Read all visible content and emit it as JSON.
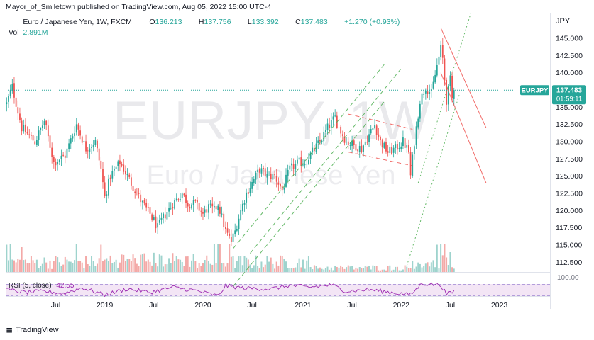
{
  "caption": {
    "author": "Mayor_of_Smiletown",
    "text": "published on TradingView.com, Aug 05, 2022 15:00 UTC-4"
  },
  "legend": {
    "title": "Euro / Japanese Yen, 1W, FXCM",
    "open_label": "O",
    "open": "136.213",
    "high_label": "H",
    "high": "137.756",
    "low_label": "L",
    "low": "133.392",
    "close_label": "C",
    "close": "137.483",
    "change": "+1.270 (+0.93%)",
    "vol_label": "Vol",
    "vol": "2.891M"
  },
  "watermark": {
    "symbol": "EURJPY, 1W",
    "name": "Euro / Japanese Yen"
  },
  "price_tag": {
    "symbol": "EURJPY",
    "price": "137.483",
    "countdown": "01:59:11"
  },
  "rsi": {
    "label": "RSI (5, close)",
    "value": "42.55",
    "level_label": "100.00"
  },
  "brand": {
    "name": "TradingView"
  },
  "colors": {
    "up": "#26a69a",
    "down": "#ef5350",
    "vol_up": "#9ed3cd",
    "vol_down": "#f3a9a7",
    "channel_green": "#4caf50",
    "channel_red": "#ef5350",
    "rsi_line": "#9c27b0",
    "rsi_fill": "#f3e5f5",
    "price_line": "#26a69a"
  },
  "chart_data": {
    "type": "candlestick",
    "currency_label": "JPY",
    "ylim": [
      111.5,
      148.5
    ],
    "y_ticks": [
      "145.000",
      "142.500",
      "140.000",
      "137.500",
      "135.000",
      "132.500",
      "130.000",
      "127.500",
      "125.000",
      "122.500",
      "120.000",
      "117.500",
      "115.000",
      "112.500"
    ],
    "x_ticks": [
      {
        "label": "Jul",
        "t": 26
      },
      {
        "label": "2019",
        "t": 52
      },
      {
        "label": "Jul",
        "t": 78
      },
      {
        "label": "2020",
        "t": 104
      },
      {
        "label": "Jul",
        "t": 130
      },
      {
        "label": "2021",
        "t": 157
      },
      {
        "label": "Jul",
        "t": 183
      },
      {
        "label": "2022",
        "t": 209
      },
      {
        "label": "Jul",
        "t": 235
      },
      {
        "label": "2023",
        "t": 261
      }
    ],
    "last_price": 137.483,
    "price_anchors": [
      [
        0,
        135.5
      ],
      [
        3,
        138.0
      ],
      [
        8,
        132.0
      ],
      [
        15,
        130.0
      ],
      [
        20,
        133.0
      ],
      [
        25,
        127.0
      ],
      [
        31,
        128.0
      ],
      [
        37,
        132.5
      ],
      [
        42,
        129.0
      ],
      [
        47,
        130.0
      ],
      [
        50,
        126.0
      ],
      [
        52,
        122.0
      ],
      [
        55,
        125.0
      ],
      [
        60,
        127.0
      ],
      [
        64,
        125.0
      ],
      [
        68,
        123.0
      ],
      [
        72,
        121.0
      ],
      [
        76,
        119.5
      ],
      [
        80,
        117.5
      ],
      [
        83,
        119.0
      ],
      [
        88,
        121.0
      ],
      [
        93,
        122.5
      ],
      [
        96,
        121.0
      ],
      [
        100,
        121.0
      ],
      [
        104,
        119.5
      ],
      [
        107,
        120.5
      ],
      [
        110,
        120.0
      ],
      [
        112,
        121.0
      ],
      [
        114,
        119.0
      ],
      [
        116,
        117.0
      ],
      [
        119,
        115.5
      ],
      [
        121,
        117.0
      ],
      [
        124,
        120.0
      ],
      [
        127,
        122.5
      ],
      [
        130,
        124.0
      ],
      [
        134,
        126.0
      ],
      [
        138,
        125.0
      ],
      [
        142,
        125.0
      ],
      [
        146,
        123.0
      ],
      [
        150,
        126.0
      ],
      [
        155,
        127.0
      ],
      [
        158,
        127.0
      ],
      [
        162,
        128.5
      ],
      [
        166,
        130.0
      ],
      [
        170,
        132.0
      ],
      [
        174,
        133.5
      ],
      [
        176,
        132.0
      ],
      [
        180,
        130.0
      ],
      [
        184,
        129.5
      ],
      [
        188,
        129.0
      ],
      [
        192,
        131.0
      ],
      [
        195,
        132.5
      ],
      [
        198,
        130.0
      ],
      [
        202,
        128.5
      ],
      [
        206,
        129.0
      ],
      [
        210,
        130.0
      ],
      [
        213,
        128.5
      ],
      [
        214,
        125.0
      ],
      [
        216,
        130.0
      ],
      [
        219,
        136.0
      ],
      [
        222,
        138.0
      ],
      [
        225,
        137.0
      ],
      [
        228,
        141.0
      ],
      [
        230,
        143.5
      ],
      [
        231,
        142.0
      ],
      [
        233,
        136.0
      ],
      [
        235,
        139.0
      ],
      [
        236,
        136.2
      ],
      [
        237,
        137.48
      ]
    ],
    "volume_spikes": [
      [
        0,
        5.5
      ],
      [
        2,
        6
      ],
      [
        8,
        5
      ],
      [
        37,
        6
      ],
      [
        50,
        5.5
      ],
      [
        110,
        7
      ],
      [
        112,
        9
      ],
      [
        113,
        6
      ],
      [
        118,
        6.5
      ],
      [
        228,
        5.5
      ],
      [
        230,
        8
      ],
      [
        232,
        6
      ],
      [
        235,
        4
      ]
    ],
    "rsi_anchors": [
      [
        0,
        52
      ],
      [
        10,
        40
      ],
      [
        20,
        45
      ],
      [
        30,
        35
      ],
      [
        40,
        60
      ],
      [
        52,
        30
      ],
      [
        64,
        55
      ],
      [
        76,
        40
      ],
      [
        88,
        62
      ],
      [
        100,
        48
      ],
      [
        112,
        25
      ],
      [
        116,
        68
      ],
      [
        126,
        58
      ],
      [
        140,
        55
      ],
      [
        150,
        70
      ],
      [
        160,
        62
      ],
      [
        172,
        72
      ],
      [
        180,
        45
      ],
      [
        192,
        52
      ],
      [
        204,
        40
      ],
      [
        214,
        30
      ],
      [
        220,
        78
      ],
      [
        230,
        72
      ],
      [
        233,
        32
      ],
      [
        237,
        42.55
      ]
    ],
    "channels": [
      {
        "color": "green",
        "style": "dashed",
        "points": [
          [
            120,
            114.5
          ],
          [
            200,
            141.2
          ]
        ]
      },
      {
        "color": "green",
        "style": "dashed",
        "points": [
          [
            120,
            109.0
          ],
          [
            200,
            135.8
          ]
        ]
      },
      {
        "color": "green",
        "style": "dashed",
        "points": [
          [
            129,
            113.8
          ],
          [
            209,
            140.6
          ]
        ]
      },
      {
        "color": "red",
        "style": "dashed",
        "points": [
          [
            181,
            134.0
          ],
          [
            215,
            131.8
          ]
        ]
      },
      {
        "color": "red",
        "style": "dashed",
        "points": [
          [
            181,
            128.5
          ],
          [
            215,
            126.5
          ]
        ]
      },
      {
        "color": "green",
        "style": "dotted",
        "points": [
          [
            218,
            124.0
          ],
          [
            248,
            150.5
          ]
        ]
      },
      {
        "color": "green",
        "style": "dotted",
        "points": [
          [
            212,
            112.0
          ],
          [
            240,
            137.0
          ]
        ]
      },
      {
        "color": "red",
        "style": "solid",
        "points": [
          [
            230,
            146.5
          ],
          [
            254,
            132.0
          ]
        ]
      },
      {
        "color": "red",
        "style": "solid",
        "points": [
          [
            230,
            140.0
          ],
          [
            254,
            124.0
          ]
        ]
      }
    ]
  }
}
